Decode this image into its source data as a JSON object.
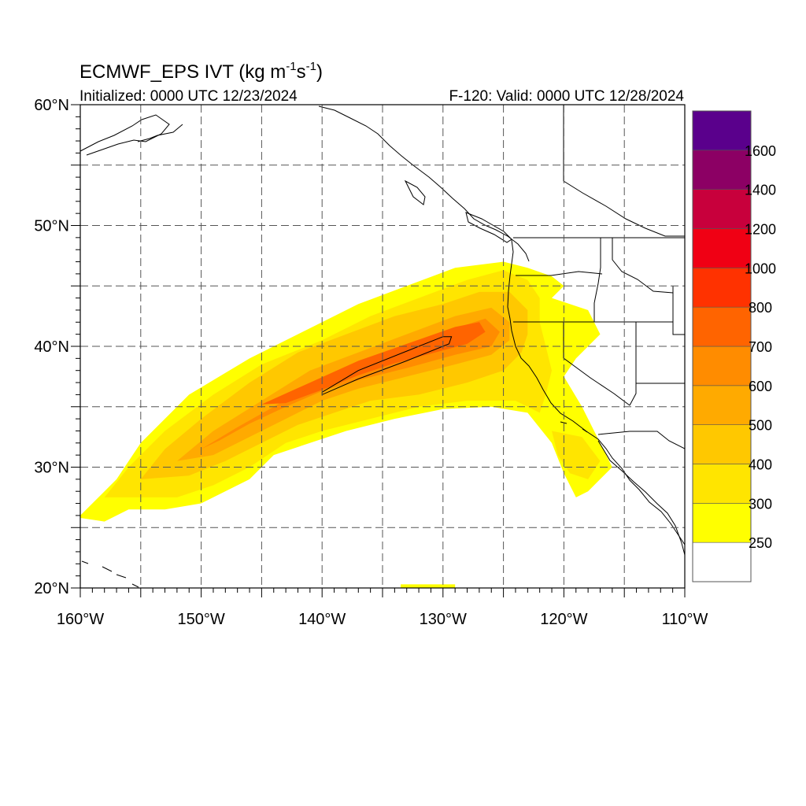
{
  "title": {
    "main": "ECMWF_EPS IVT (kg m",
    "sup1": "-1",
    "mid": "s",
    "sup2": "-1",
    "end": ")"
  },
  "subtitle_left": "Initialized: 0000 UTC 12/23/2024",
  "subtitle_right": "F-120: Valid: 0000 UTC 12/28/2024",
  "map_extent": {
    "lon_min": -160,
    "lon_max": -110,
    "lat_min": 20,
    "lat_max": 60
  },
  "axes": {
    "x_ticks": [
      {
        "lon": -160,
        "label": "160°W"
      },
      {
        "lon": -150,
        "label": "150°W"
      },
      {
        "lon": -140,
        "label": "140°W"
      },
      {
        "lon": -130,
        "label": "130°W"
      },
      {
        "lon": -120,
        "label": "120°W"
      },
      {
        "lon": -110,
        "label": "110°W"
      }
    ],
    "y_ticks": [
      {
        "lat": 20,
        "label": "20°N"
      },
      {
        "lat": 30,
        "label": "30°N"
      },
      {
        "lat": 40,
        "label": "40°N"
      },
      {
        "lat": 50,
        "label": "50°N"
      },
      {
        "lat": 60,
        "label": "60°N"
      }
    ],
    "grid_lons": [
      -155,
      -150,
      -145,
      -140,
      -135,
      -130,
      -125,
      -120,
      -115
    ],
    "grid_lats": [
      25,
      30,
      35,
      40,
      45,
      50,
      55
    ]
  },
  "colorbar": {
    "colors": [
      "#ffffff",
      "#ffff00",
      "#ffe500",
      "#ffc800",
      "#ffaa00",
      "#ff8c00",
      "#ff6400",
      "#ff3200",
      "#f00014",
      "#c8003c",
      "#8c0064",
      "#5a008c"
    ],
    "labels": [
      "250",
      "300",
      "400",
      "500",
      "600",
      "700",
      "800",
      "1000",
      "1200",
      "1400",
      "1600"
    ]
  },
  "chart_data": {
    "type": "heatmap",
    "variable": "IVT",
    "units": "kg m-1 s-1",
    "levels": [
      250,
      300,
      400,
      500,
      600,
      700,
      800,
      1000,
      1200,
      1400,
      1600
    ],
    "colors": {
      "250-300": "#ffff00",
      "300-400": "#ffe500",
      "400-500": "#ffc800",
      "500-600": "#ffaa00",
      "600-700": "#ff8c00",
      "700-800": "#ff6400"
    },
    "contour_lines": [
      {
        "value": 800
      }
    ],
    "regions": [
      {
        "level": "250-300",
        "polygon": [
          [
            -160,
            26
          ],
          [
            -157,
            29
          ],
          [
            -155,
            32
          ],
          [
            -151,
            36
          ],
          [
            -146,
            39
          ],
          [
            -141,
            41.5
          ],
          [
            -137,
            43.5
          ],
          [
            -133,
            45
          ],
          [
            -129,
            46.5
          ],
          [
            -125,
            47
          ],
          [
            -123,
            46.5
          ],
          [
            -121,
            45.8
          ],
          [
            -120,
            45
          ],
          [
            -121,
            44
          ],
          [
            -118,
            43
          ],
          [
            -117,
            41
          ],
          [
            -119,
            39
          ],
          [
            -120,
            37.5
          ],
          [
            -118.5,
            35
          ],
          [
            -117.5,
            33
          ],
          [
            -116,
            30
          ],
          [
            -118,
            28
          ],
          [
            -119,
            27.5
          ],
          [
            -120,
            29.5
          ],
          [
            -121,
            32
          ],
          [
            -123,
            34.5
          ],
          [
            -126,
            35
          ],
          [
            -130,
            34.8
          ],
          [
            -134,
            34
          ],
          [
            -138,
            33
          ],
          [
            -141,
            32
          ],
          [
            -144,
            31
          ],
          [
            -146,
            29
          ],
          [
            -150,
            27
          ],
          [
            -153,
            26.5
          ],
          [
            -156,
            26.5
          ],
          [
            -158,
            25.5
          ],
          [
            -160,
            25.8
          ]
        ]
      },
      {
        "level": "250-300",
        "polygon": [
          [
            -133.5,
            20.3
          ],
          [
            -129,
            20.3
          ],
          [
            -129,
            20
          ],
          [
            -133.5,
            20
          ]
        ]
      },
      {
        "level": "300-400",
        "polygon": [
          [
            -158,
            27.5
          ],
          [
            -156,
            30
          ],
          [
            -153,
            33
          ],
          [
            -149,
            36
          ],
          [
            -145,
            38.5
          ],
          [
            -140,
            40.5
          ],
          [
            -136,
            42.5
          ],
          [
            -132,
            44
          ],
          [
            -128,
            45.5
          ],
          [
            -125,
            46.3
          ],
          [
            -123,
            45.5
          ],
          [
            -122,
            44
          ],
          [
            -122,
            42
          ],
          [
            -121.5,
            40
          ],
          [
            -121,
            38
          ],
          [
            -121.5,
            36
          ],
          [
            -122,
            34.5
          ],
          [
            -124,
            35.5
          ],
          [
            -128,
            35.5
          ],
          [
            -132,
            35
          ],
          [
            -136,
            34
          ],
          [
            -140,
            33
          ],
          [
            -143,
            32
          ],
          [
            -146,
            30
          ],
          [
            -149,
            28.5
          ],
          [
            -152,
            27.5
          ],
          [
            -155,
            27.5
          ]
        ]
      },
      {
        "level": "300-400",
        "polygon": [
          [
            -121,
            33
          ],
          [
            -118.5,
            32.5
          ],
          [
            -117,
            30.5
          ],
          [
            -118,
            29
          ],
          [
            -119.5,
            29.5
          ],
          [
            -120.5,
            31
          ]
        ]
      },
      {
        "level": "400-500",
        "polygon": [
          [
            -155,
            29
          ],
          [
            -153,
            31.5
          ],
          [
            -150,
            34
          ],
          [
            -146,
            37
          ],
          [
            -142,
            39.5
          ],
          [
            -138,
            41
          ],
          [
            -134,
            42.5
          ],
          [
            -130,
            43.5
          ],
          [
            -127,
            44.5
          ],
          [
            -124.5,
            44.5
          ],
          [
            -123,
            43
          ],
          [
            -123,
            41
          ],
          [
            -123.5,
            39.5
          ],
          [
            -125,
            38
          ],
          [
            -128,
            37
          ],
          [
            -132,
            36
          ],
          [
            -136,
            35.5
          ],
          [
            -139,
            34.5
          ],
          [
            -142,
            33.5
          ],
          [
            -145,
            32
          ],
          [
            -148,
            30.5
          ],
          [
            -151,
            29.3
          ]
        ]
      },
      {
        "level": "500-600",
        "polygon": [
          [
            -152,
            30.5
          ],
          [
            -149,
            33
          ],
          [
            -145,
            35.5
          ],
          [
            -141,
            38
          ],
          [
            -137,
            39.5
          ],
          [
            -133,
            41
          ],
          [
            -129,
            42.5
          ],
          [
            -126,
            43.2
          ],
          [
            -124.5,
            42
          ],
          [
            -124.5,
            40.5
          ],
          [
            -126,
            39.3
          ],
          [
            -129,
            38.5
          ],
          [
            -133,
            37.5
          ],
          [
            -137,
            36.5
          ],
          [
            -140,
            35.5
          ],
          [
            -143,
            34
          ],
          [
            -146,
            32.5
          ],
          [
            -149,
            31
          ]
        ]
      },
      {
        "level": "600-700",
        "polygon": [
          [
            -150,
            31.5
          ],
          [
            -147,
            33.3
          ],
          [
            -144,
            35
          ],
          [
            -141,
            36.8
          ],
          [
            -137,
            38.5
          ],
          [
            -133,
            40
          ],
          [
            -129,
            41.5
          ],
          [
            -126.5,
            42.3
          ],
          [
            -125.3,
            41.2
          ],
          [
            -126,
            40
          ],
          [
            -129,
            39.3
          ],
          [
            -133,
            38.2
          ],
          [
            -137,
            37.2
          ],
          [
            -140,
            36.3
          ],
          [
            -143,
            35
          ],
          [
            -146,
            33.6
          ],
          [
            -148.5,
            32.2
          ]
        ]
      },
      {
        "level": "700-800",
        "polygon": [
          [
            -145,
            35.2
          ],
          [
            -141,
            37
          ],
          [
            -137,
            38.8
          ],
          [
            -133,
            40.2
          ],
          [
            -129,
            41.6
          ],
          [
            -127,
            42
          ],
          [
            -126.5,
            41.2
          ],
          [
            -128,
            40.2
          ],
          [
            -131,
            39.4
          ],
          [
            -134,
            38.6
          ],
          [
            -137,
            37.6
          ],
          [
            -140,
            36.4
          ],
          [
            -143,
            35.3
          ]
        ]
      }
    ]
  }
}
